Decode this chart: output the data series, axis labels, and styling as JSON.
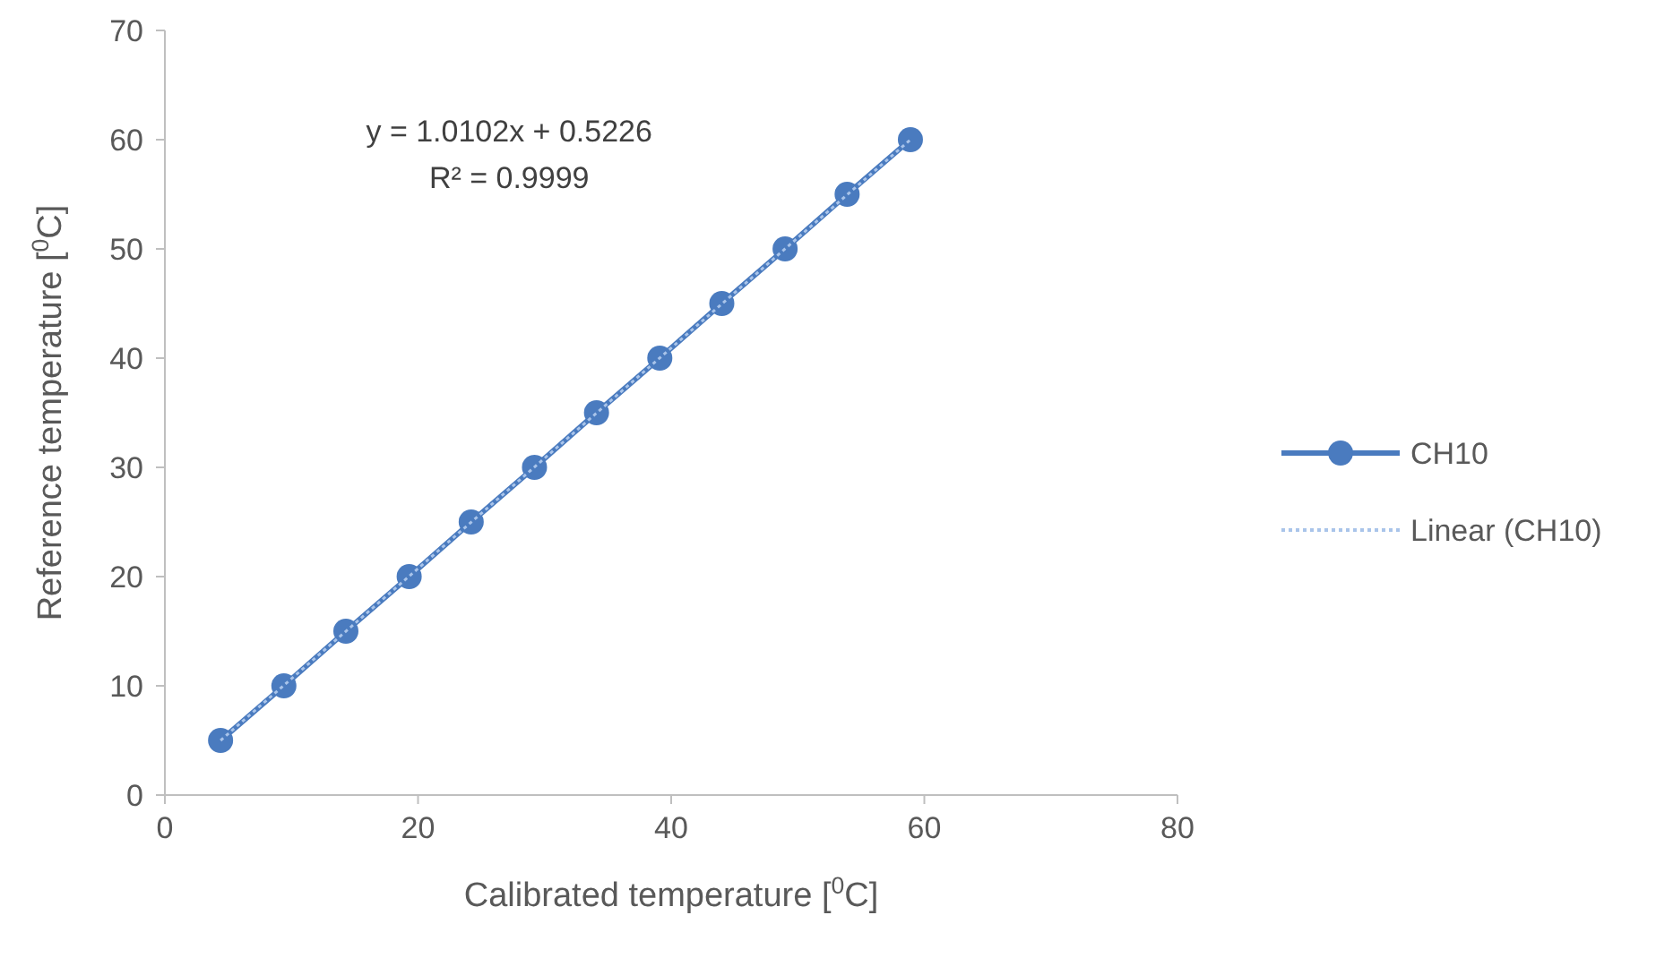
{
  "chart_data": {
    "type": "line",
    "xlabel": "Calibrated temperature [$^{0}$C]",
    "ylabel": "Reference temperature [$^{0}$C]",
    "xlim": [
      0,
      80
    ],
    "xticks": [
      0,
      20,
      40,
      60,
      80
    ],
    "ylim": [
      0,
      70
    ],
    "yticks": [
      0,
      10,
      20,
      30,
      40,
      50,
      60,
      70
    ],
    "grid": false,
    "legend": "right",
    "series": [
      {
        "name": "CH10",
        "color": "#4a7bbf",
        "marker": "circle",
        "line_style": "solid",
        "x": [
          4.4,
          9.4,
          14.3,
          19.3,
          24.2,
          29.2,
          34.1,
          39.1,
          44.0,
          49.0,
          53.9,
          58.9
        ],
        "values": [
          5,
          10,
          15,
          20,
          25,
          30,
          35,
          40,
          45,
          50,
          55,
          60
        ]
      },
      {
        "name": "Linear (CH10)",
        "color": "#a9c4ea",
        "marker": "none",
        "line_style": "dotted",
        "x": [
          4.4,
          58.9
        ],
        "values": [
          5.0,
          60.0
        ]
      }
    ],
    "annotations": [
      "y = 1.0102x + 0.5226",
      "R² = 0.9999"
    ]
  }
}
